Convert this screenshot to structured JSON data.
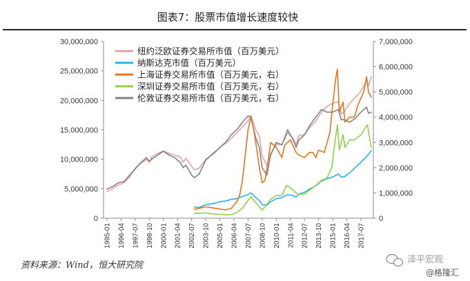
{
  "figure_title": "图表7：股票市值增长速度较快",
  "source_note": "资料来源：Wind，恒大研究院",
  "watermark": {
    "brand": "泽平宏观",
    "handle": "@格隆汇"
  },
  "colors": {
    "nyse": "#E3A2AA",
    "nasdaq": "#1EB4E8",
    "shanghai": "#E8721C",
    "shenzhen": "#8DD14A",
    "london": "#808080"
  },
  "chart_data": {
    "type": "line",
    "title": "",
    "left_axis": {
      "ylim": [
        0,
        30000000
      ],
      "ticks": [
        0,
        5000000,
        10000000,
        15000000,
        20000000,
        25000000,
        30000000
      ],
      "tick_labels": [
        "0",
        "5,000,000",
        "10,000,000",
        "15,000,000",
        "20,000,000",
        "25,000,000",
        "30,000,000"
      ]
    },
    "right_axis": {
      "ylim": [
        0,
        7000000
      ],
      "ticks": [
        0,
        1000000,
        2000000,
        3000000,
        4000000,
        5000000,
        6000000,
        7000000
      ],
      "tick_labels": [
        "0",
        "1,000,000",
        "2,000,000",
        "3,000,000",
        "4,000,000",
        "5,000,000",
        "6,000,000",
        "7,000,000"
      ]
    },
    "x_tick_labels": [
      "1995-01",
      "1996-04",
      "1997-07",
      "1998-10",
      "2000-01",
      "2001-04",
      "2002-07",
      "2003-10",
      "2005-01",
      "2006-04",
      "2007-07",
      "2008-10",
      "2010-01",
      "2011-04",
      "2012-07",
      "2013-10",
      "2015-01",
      "2016-04",
      "2017-07"
    ],
    "x_ticks": [
      "1995-01",
      "1996-04",
      "1997-07",
      "1998-10",
      "2000-01",
      "2001-04",
      "2002-07",
      "2003-10",
      "2005-01",
      "2006-04",
      "2007-07",
      "2008-10",
      "2010-01",
      "2011-04",
      "2012-07",
      "2013-10",
      "2015-01",
      "2016-04",
      "2017-07"
    ],
    "x_range": [
      "1995-01",
      "2018-06"
    ],
    "grid": false,
    "legend_position": "top-left",
    "series": [
      {
        "name": "纽约泛欧证券交易所市值（百万美元）",
        "axis": "left",
        "color_key": "nyse",
        "points": [
          [
            "1995-01",
            4500000
          ],
          [
            "1995-07",
            5000000
          ],
          [
            "1996-01",
            5600000
          ],
          [
            "1996-07",
            6000000
          ],
          [
            "1997-01",
            7000000
          ],
          [
            "1997-07",
            8500000
          ],
          [
            "1998-01",
            9300000
          ],
          [
            "1998-07",
            10000000
          ],
          [
            "1998-10",
            9500000
          ],
          [
            "1999-01",
            10500000
          ],
          [
            "1999-07",
            11000000
          ],
          [
            "2000-01",
            11400000
          ],
          [
            "2000-07",
            11000000
          ],
          [
            "2001-01",
            10700000
          ],
          [
            "2001-07",
            10400000
          ],
          [
            "2001-10",
            9500000
          ],
          [
            "2002-01",
            10200000
          ],
          [
            "2002-07",
            8800000
          ],
          [
            "2002-10",
            8200000
          ],
          [
            "2003-03",
            8500000
          ],
          [
            "2003-10",
            10000000
          ],
          [
            "2004-07",
            11000000
          ],
          [
            "2005-01",
            12000000
          ],
          [
            "2005-07",
            12700000
          ],
          [
            "2006-01",
            13500000
          ],
          [
            "2006-07",
            14500000
          ],
          [
            "2007-01",
            15500000
          ],
          [
            "2007-07",
            16500000
          ],
          [
            "2007-10",
            17500000
          ],
          [
            "2008-03",
            15000000
          ],
          [
            "2008-07",
            14000000
          ],
          [
            "2008-10",
            10500000
          ],
          [
            "2009-03",
            9000000
          ],
          [
            "2009-07",
            11000000
          ],
          [
            "2010-01",
            12500000
          ],
          [
            "2010-07",
            12500000
          ],
          [
            "2011-01",
            14500000
          ],
          [
            "2011-07",
            13500000
          ],
          [
            "2011-10",
            12500000
          ],
          [
            "2012-01",
            14000000
          ],
          [
            "2012-07",
            14200000
          ],
          [
            "2013-01",
            15500000
          ],
          [
            "2013-07",
            16500000
          ],
          [
            "2014-01",
            18000000
          ],
          [
            "2014-07",
            19000000
          ],
          [
            "2015-01",
            19500000
          ],
          [
            "2015-07",
            19800000
          ],
          [
            "2015-10",
            17700000
          ],
          [
            "2016-01",
            18000000
          ],
          [
            "2016-07",
            19500000
          ],
          [
            "2017-01",
            20500000
          ],
          [
            "2017-07",
            21500000
          ],
          [
            "2018-01",
            23500000
          ],
          [
            "2018-03",
            22500000
          ],
          [
            "2018-06",
            24000000
          ]
        ]
      },
      {
        "name": "纳斯达克市值（百万美元）",
        "axis": "left",
        "color_key": "nasdaq",
        "points": [
          [
            "2002-10",
            1900000
          ],
          [
            "2003-03",
            1800000
          ],
          [
            "2003-10",
            2300000
          ],
          [
            "2004-07",
            2500000
          ],
          [
            "2005-01",
            2800000
          ],
          [
            "2005-07",
            2900000
          ],
          [
            "2006-01",
            3200000
          ],
          [
            "2006-07",
            3300000
          ],
          [
            "2007-01",
            3700000
          ],
          [
            "2007-07",
            4000000
          ],
          [
            "2007-10",
            4300000
          ],
          [
            "2008-03",
            3500000
          ],
          [
            "2008-07",
            3000000
          ],
          [
            "2008-10",
            2300000
          ],
          [
            "2009-03",
            2200000
          ],
          [
            "2009-07",
            2800000
          ],
          [
            "2010-01",
            3300000
          ],
          [
            "2010-07",
            3500000
          ],
          [
            "2011-01",
            4000000
          ],
          [
            "2011-07",
            3800000
          ],
          [
            "2011-10",
            3600000
          ],
          [
            "2012-01",
            4100000
          ],
          [
            "2012-07",
            4400000
          ],
          [
            "2013-01",
            5000000
          ],
          [
            "2013-07",
            5500000
          ],
          [
            "2014-01",
            6300000
          ],
          [
            "2014-07",
            6700000
          ],
          [
            "2015-01",
            7000000
          ],
          [
            "2015-07",
            7500000
          ],
          [
            "2015-10",
            7000000
          ],
          [
            "2016-01",
            7000000
          ],
          [
            "2016-07",
            7700000
          ],
          [
            "2017-01",
            8600000
          ],
          [
            "2017-07",
            9500000
          ],
          [
            "2018-01",
            10500000
          ],
          [
            "2018-03",
            10800000
          ],
          [
            "2018-06",
            11500000
          ]
        ]
      },
      {
        "name": "上海证券交易所市值（百万美元，右）",
        "axis": "right",
        "color_key": "shanghai",
        "points": [
          [
            "2002-10",
            350000
          ],
          [
            "2003-10",
            450000
          ],
          [
            "2004-07",
            400000
          ],
          [
            "2005-01",
            360000
          ],
          [
            "2005-07",
            330000
          ],
          [
            "2006-01",
            380000
          ],
          [
            "2006-07",
            650000
          ],
          [
            "2006-10",
            900000
          ],
          [
            "2007-01",
            1500000
          ],
          [
            "2007-04",
            2500000
          ],
          [
            "2007-07",
            3500000
          ],
          [
            "2007-10",
            4000000
          ],
          [
            "2008-01",
            3500000
          ],
          [
            "2008-04",
            2800000
          ],
          [
            "2008-07",
            2000000
          ],
          [
            "2008-10",
            1400000
          ],
          [
            "2009-01",
            1500000
          ],
          [
            "2009-04",
            2200000
          ],
          [
            "2009-07",
            3000000
          ],
          [
            "2009-10",
            2900000
          ],
          [
            "2010-01",
            2800000
          ],
          [
            "2010-07",
            2400000
          ],
          [
            "2010-10",
            2900000
          ],
          [
            "2011-04",
            3100000
          ],
          [
            "2011-10",
            2600000
          ],
          [
            "2012-01",
            2500000
          ],
          [
            "2012-07",
            2400000
          ],
          [
            "2012-12",
            2600000
          ],
          [
            "2013-04",
            2600000
          ],
          [
            "2013-07",
            2400000
          ],
          [
            "2013-10",
            2700000
          ],
          [
            "2014-04",
            2600000
          ],
          [
            "2014-10",
            3400000
          ],
          [
            "2015-01",
            4500000
          ],
          [
            "2015-04",
            5500000
          ],
          [
            "2015-06",
            5900000
          ],
          [
            "2015-08",
            4200000
          ],
          [
            "2015-12",
            4600000
          ],
          [
            "2016-02",
            3800000
          ],
          [
            "2016-07",
            4000000
          ],
          [
            "2016-12",
            4000000
          ],
          [
            "2017-04",
            4500000
          ],
          [
            "2017-10",
            5000000
          ],
          [
            "2018-01",
            5600000
          ],
          [
            "2018-03",
            5000000
          ],
          [
            "2018-06",
            4800000
          ]
        ]
      },
      {
        "name": "深圳证券交易所市值（百万美元，右）",
        "axis": "right",
        "color_key": "shenzhen",
        "points": [
          [
            "2002-10",
            190000
          ],
          [
            "2003-10",
            210000
          ],
          [
            "2004-07",
            160000
          ],
          [
            "2005-01",
            150000
          ],
          [
            "2005-07",
            130000
          ],
          [
            "2006-01",
            140000
          ],
          [
            "2006-07",
            220000
          ],
          [
            "2007-01",
            400000
          ],
          [
            "2007-07",
            700000
          ],
          [
            "2007-10",
            850000
          ],
          [
            "2008-01",
            700000
          ],
          [
            "2008-07",
            450000
          ],
          [
            "2008-10",
            320000
          ],
          [
            "2009-01",
            450000
          ],
          [
            "2009-07",
            750000
          ],
          [
            "2010-01",
            900000
          ],
          [
            "2010-07",
            900000
          ],
          [
            "2010-12",
            1300000
          ],
          [
            "2011-04",
            1200000
          ],
          [
            "2011-10",
            1000000
          ],
          [
            "2012-01",
            950000
          ],
          [
            "2012-07",
            950000
          ],
          [
            "2012-12",
            1100000
          ],
          [
            "2013-07",
            1300000
          ],
          [
            "2014-01",
            1500000
          ],
          [
            "2014-07",
            1600000
          ],
          [
            "2014-12",
            2000000
          ],
          [
            "2015-03",
            2900000
          ],
          [
            "2015-06",
            3700000
          ],
          [
            "2015-08",
            2700000
          ],
          [
            "2015-12",
            3300000
          ],
          [
            "2016-02",
            2800000
          ],
          [
            "2016-07",
            3100000
          ],
          [
            "2016-12",
            3100000
          ],
          [
            "2017-07",
            3300000
          ],
          [
            "2017-12",
            3600000
          ],
          [
            "2018-02",
            3700000
          ],
          [
            "2018-04",
            3200000
          ],
          [
            "2018-06",
            2800000
          ]
        ]
      },
      {
        "name": "伦敦证券交易所市值（百万美元，右）",
        "axis": "right",
        "color_key": "london",
        "points": [
          [
            "1995-01",
            1150000
          ],
          [
            "1995-07",
            1250000
          ],
          [
            "1996-01",
            1400000
          ],
          [
            "1996-07",
            1450000
          ],
          [
            "1997-01",
            1700000
          ],
          [
            "1997-07",
            1950000
          ],
          [
            "1998-01",
            2200000
          ],
          [
            "1998-07",
            2400000
          ],
          [
            "1998-10",
            2250000
          ],
          [
            "1999-01",
            2350000
          ],
          [
            "1999-07",
            2500000
          ],
          [
            "2000-01",
            2650000
          ],
          [
            "2000-07",
            2500000
          ],
          [
            "2001-01",
            2400000
          ],
          [
            "2001-07",
            2200000
          ],
          [
            "2001-10",
            2000000
          ],
          [
            "2002-01",
            2100000
          ],
          [
            "2002-07",
            1700000
          ],
          [
            "2002-10",
            1600000
          ],
          [
            "2003-03",
            1750000
          ],
          [
            "2003-10",
            2300000
          ],
          [
            "2004-07",
            2600000
          ],
          [
            "2005-01",
            2800000
          ],
          [
            "2005-07",
            3000000
          ],
          [
            "2006-01",
            3300000
          ],
          [
            "2006-07",
            3500000
          ],
          [
            "2007-01",
            3800000
          ],
          [
            "2007-07",
            4050000
          ],
          [
            "2007-10",
            4000000
          ],
          [
            "2008-03",
            3200000
          ],
          [
            "2008-07",
            2800000
          ],
          [
            "2008-10",
            2000000
          ],
          [
            "2009-03",
            1700000
          ],
          [
            "2009-07",
            2500000
          ],
          [
            "2010-01",
            3000000
          ],
          [
            "2010-07",
            2900000
          ],
          [
            "2011-01",
            3500000
          ],
          [
            "2011-07",
            3100000
          ],
          [
            "2011-10",
            2800000
          ],
          [
            "2012-01",
            3100000
          ],
          [
            "2012-07",
            3300000
          ],
          [
            "2013-01",
            3700000
          ],
          [
            "2013-07",
            4000000
          ],
          [
            "2014-01",
            4300000
          ],
          [
            "2014-07",
            4200000
          ],
          [
            "2015-01",
            4200000
          ],
          [
            "2015-07",
            4300000
          ],
          [
            "2015-10",
            3900000
          ],
          [
            "2016-01",
            3900000
          ],
          [
            "2016-07",
            3800000
          ],
          [
            "2017-01",
            3950000
          ],
          [
            "2017-07",
            4200000
          ],
          [
            "2018-01",
            4400000
          ],
          [
            "2018-03",
            4150000
          ],
          [
            "2018-06",
            4200000
          ]
        ]
      }
    ]
  }
}
